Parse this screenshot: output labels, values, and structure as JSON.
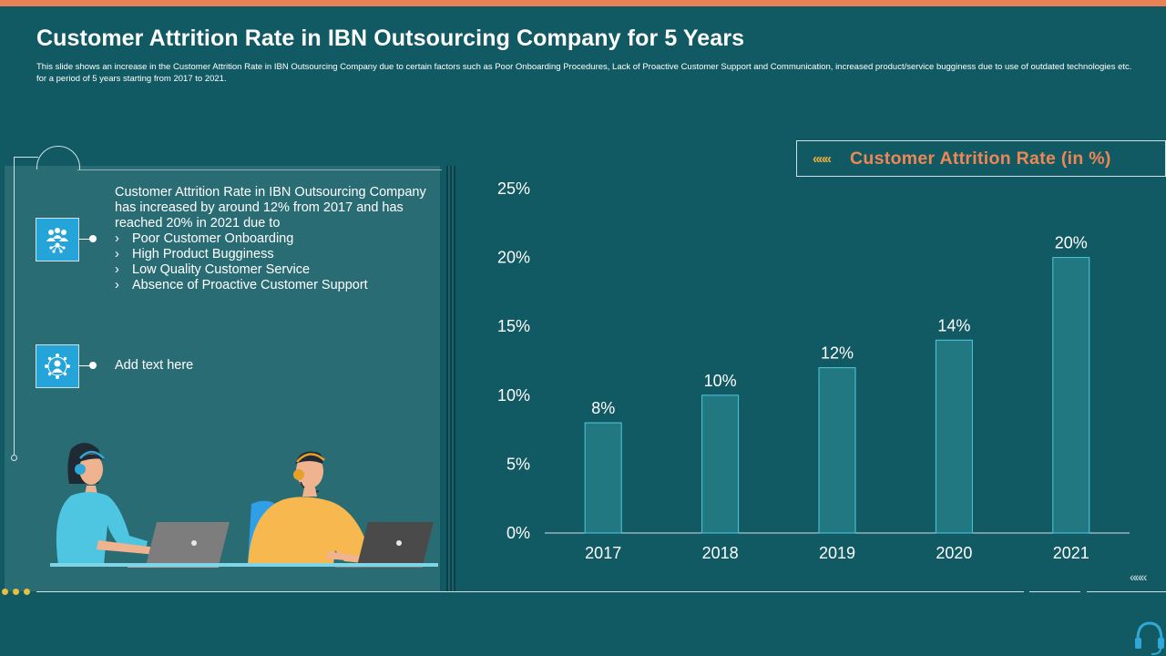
{
  "slide": {
    "title": "Customer Attrition Rate in IBN Outsourcing Company for 5 Years",
    "subtitle": "This slide shows an increase in the Customer  Attrition Rate  in IBN  Outsourcing Company due to certain factors such as Poor Onboarding Procedures, Lack of Proactive Customer Support and Communication,  increased product/service bugginess due to use of outdated technologies etc. for a period of 5 years starting from 2017 to 2021."
  },
  "left_panel": {
    "point1": {
      "icon": "team-network-icon",
      "text": "Customer Attrition Rate in IBN Outsourcing Company has increased by around 12% from 2017 and has reached 20% in 2021 due to",
      "bullet_marker": "›",
      "bullets": [
        "Poor Customer Onboarding",
        "High Product Bugginess",
        "Low Quality Customer Service",
        "Absence of Proactive Customer Support"
      ]
    },
    "point2": {
      "icon": "customer-hub-icon",
      "text": "Add text here"
    }
  },
  "legend": {
    "arrows": "«««",
    "label": "Customer Attrition Rate (in %)"
  },
  "decor": {
    "bottom_right_arrows": "«««"
  },
  "colors": {
    "background": "#115a63",
    "accent_orange": "#e98157",
    "bar_fill": "#217880",
    "bar_border": "#4fc9e0",
    "icon_blue": "#25a4da"
  },
  "chart_data": {
    "type": "bar",
    "title": "Customer Attrition Rate (in %)",
    "categories": [
      "2017",
      "2018",
      "2019",
      "2020",
      "2021"
    ],
    "values": [
      8,
      10,
      12,
      14,
      20
    ],
    "data_labels": [
      "8%",
      "10%",
      "12%",
      "14%",
      "20%"
    ],
    "y_ticks": [
      0,
      5,
      10,
      15,
      20,
      25
    ],
    "y_tick_labels": [
      "0%",
      "5%",
      "10%",
      "15%",
      "20%",
      "25%"
    ],
    "ylim": [
      0,
      25
    ],
    "xlabel": "",
    "ylabel": "",
    "grid": false
  }
}
